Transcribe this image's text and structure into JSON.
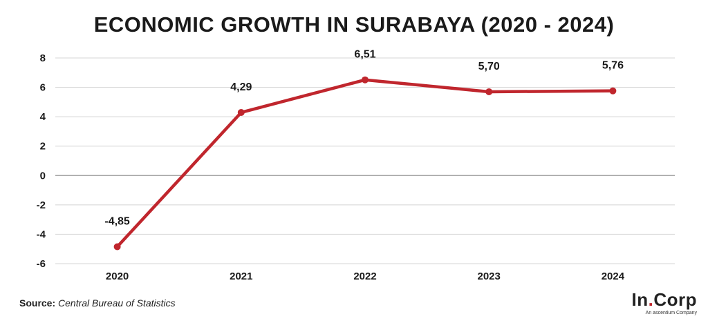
{
  "chart_data": {
    "type": "line",
    "title": "ECONOMIC GROWTH IN SURABAYA (2020 - 2024)",
    "categories": [
      "2020",
      "2021",
      "2022",
      "2023",
      "2024"
    ],
    "series": [
      {
        "values": [
          -4.85,
          4.29,
          6.51,
          5.7,
          5.76
        ]
      }
    ],
    "data_labels": [
      "-4,85",
      "4,29",
      "6,51",
      "5,70",
      "5,76"
    ],
    "y_ticks": [
      8,
      6,
      4,
      2,
      0,
      -2,
      -4,
      -6
    ],
    "ylim": [
      -6,
      8
    ],
    "grid": true,
    "line_color": "#c0262d"
  },
  "source": {
    "label": "Source:",
    "text": "Central Bureau of Statistics"
  },
  "logo": {
    "brand_left": "In",
    "brand_dot": ".",
    "brand_right": "Corp",
    "tagline": "An ascentium Company"
  }
}
